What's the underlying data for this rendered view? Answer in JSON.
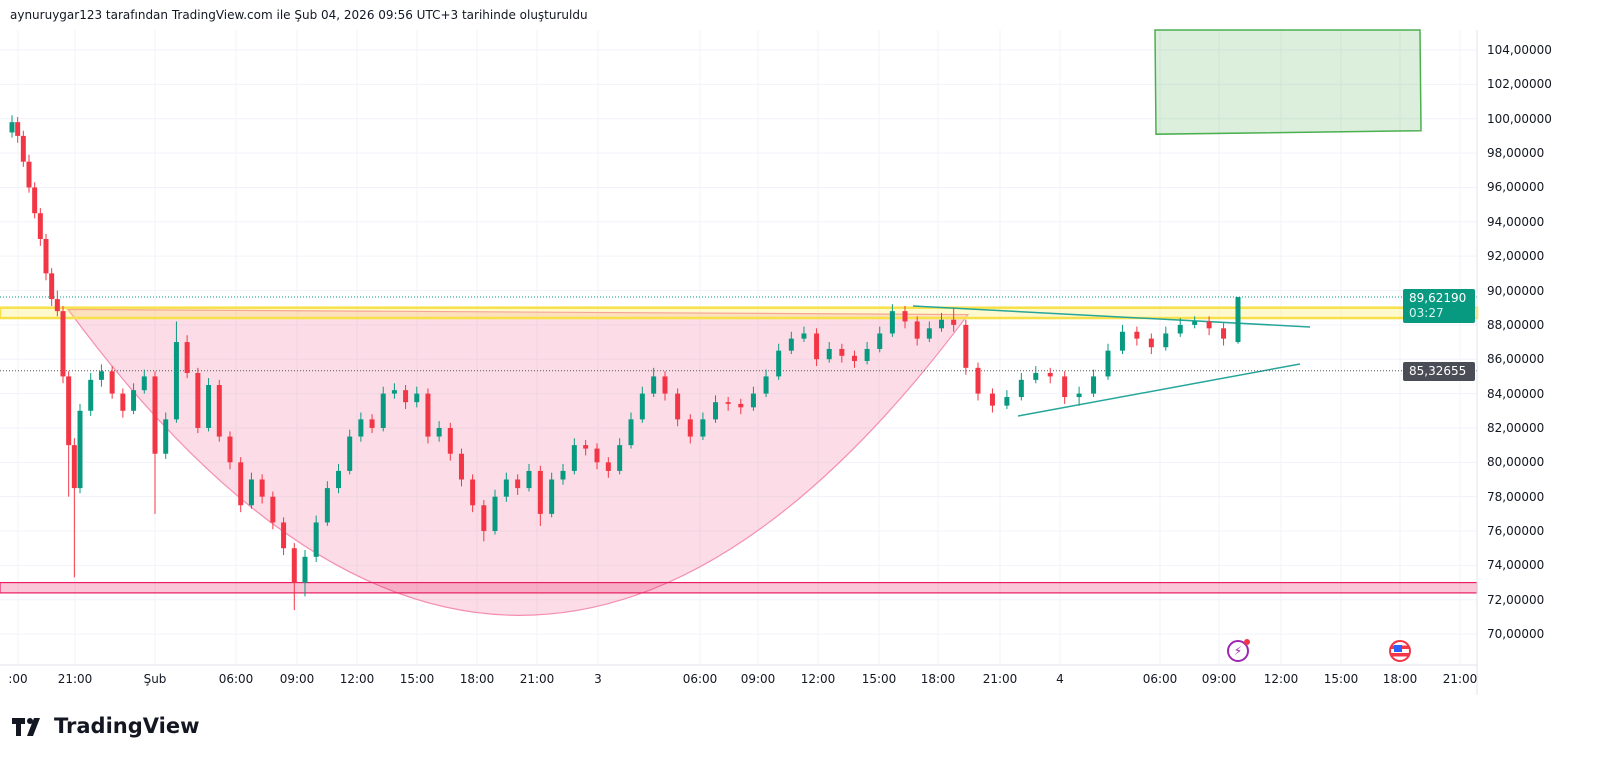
{
  "caption": "aynuruygar123 tarafından TradingView.com ile Şub 04, 2026 09:56 UTC+3 tarihinde oluşturuldu",
  "brand": "TradingView",
  "colors": {
    "up": "#089981",
    "down": "#f23645",
    "resistance": "#f7e04a",
    "support": "#e91e63",
    "cup": "#f48fb1",
    "triangle": "#26a69a",
    "target": "#4caf50"
  },
  "chart_data": {
    "type": "candlestick",
    "title": "",
    "y_axis_labels": [
      "104,00000",
      "102,00000",
      "100,00000",
      "98,00000",
      "96,00000",
      "94,00000",
      "92,00000",
      "90,00000",
      "88,00000",
      "86,00000",
      "84,00000",
      "82,00000",
      "80,00000",
      "78,00000",
      "76,00000",
      "74,00000",
      "72,00000",
      "70,00000"
    ],
    "y_values": [
      104,
      102,
      100,
      98,
      96,
      94,
      92,
      90,
      88,
      86,
      84,
      82,
      80,
      78,
      76,
      74,
      72,
      70
    ],
    "ylim": [
      69,
      105.2
    ],
    "x_axis_labels": [
      ":00",
      "21:00",
      "Şub",
      "06:00",
      "09:00",
      "12:00",
      "15:00",
      "18:00",
      "21:00",
      "3",
      "06:00",
      "09:00",
      "12:00",
      "15:00",
      "18:00",
      "21:00",
      "4",
      "06:00",
      "09:00",
      "12:00",
      "15:00",
      "18:00",
      "21:00"
    ],
    "last_price": {
      "value": "89,62190",
      "countdown": "03:27",
      "raw": 89.6219
    },
    "prev_close": {
      "value": "85,32655",
      "raw": 85.32655
    },
    "resistance_zone": [
      88.4,
      89.0
    ],
    "support_zone": [
      72.4,
      73.0
    ],
    "target_zone": [
      99.1,
      105.2
    ],
    "cup_bottom": 71.4,
    "candles": [
      [
        99.2,
        100.2,
        98.9,
        99.8
      ],
      [
        99.8,
        100.1,
        98.6,
        99.0
      ],
      [
        99.0,
        99.3,
        97.2,
        97.5
      ],
      [
        97.5,
        97.9,
        95.7,
        96.0
      ],
      [
        96.0,
        96.3,
        94.2,
        94.5
      ],
      [
        94.5,
        94.8,
        92.6,
        93.0
      ],
      [
        93.0,
        93.3,
        90.6,
        91.0
      ],
      [
        91.0,
        91.3,
        89.1,
        89.5
      ],
      [
        89.5,
        90.0,
        88.5,
        88.8
      ],
      [
        88.8,
        89.1,
        84.6,
        85.0
      ],
      [
        85.0,
        85.3,
        78.0,
        81.0
      ],
      [
        81.0,
        81.4,
        73.3,
        78.5
      ],
      [
        78.5,
        83.4,
        78.2,
        83.0
      ],
      [
        83.0,
        85.2,
        82.7,
        84.8
      ],
      [
        84.8,
        85.7,
        84.4,
        85.3
      ],
      [
        85.3,
        85.6,
        83.7,
        84.0
      ],
      [
        84.0,
        84.3,
        82.6,
        83.0
      ],
      [
        83.0,
        84.6,
        82.8,
        84.2
      ],
      [
        84.2,
        85.4,
        84.0,
        85.0
      ],
      [
        85.0,
        85.3,
        77.0,
        80.5
      ],
      [
        80.5,
        82.9,
        80.2,
        82.5
      ],
      [
        82.5,
        88.2,
        82.3,
        87.0
      ],
      [
        87.0,
        87.4,
        84.9,
        85.2
      ],
      [
        85.2,
        85.5,
        81.7,
        82.0
      ],
      [
        82.0,
        84.9,
        81.8,
        84.5
      ],
      [
        84.5,
        84.8,
        81.2,
        81.5
      ],
      [
        81.5,
        81.8,
        79.6,
        80.0
      ],
      [
        80.0,
        80.3,
        77.1,
        77.5
      ],
      [
        77.5,
        79.4,
        77.3,
        79.0
      ],
      [
        79.0,
        79.3,
        77.6,
        78.0
      ],
      [
        78.0,
        78.3,
        76.1,
        76.5
      ],
      [
        76.5,
        76.8,
        74.6,
        75.0
      ],
      [
        75.0,
        75.3,
        71.4,
        73.0
      ],
      [
        73.0,
        74.9,
        72.2,
        74.5
      ],
      [
        74.5,
        76.9,
        74.2,
        76.5
      ],
      [
        76.5,
        78.9,
        76.3,
        78.5
      ],
      [
        78.5,
        79.9,
        78.2,
        79.5
      ],
      [
        79.5,
        81.9,
        79.3,
        81.5
      ],
      [
        81.5,
        82.9,
        81.2,
        82.5
      ],
      [
        82.5,
        82.8,
        81.7,
        82.0
      ],
      [
        82.0,
        84.4,
        81.8,
        84.0
      ],
      [
        84.0,
        84.6,
        83.7,
        84.2
      ],
      [
        84.2,
        84.5,
        83.1,
        83.5
      ],
      [
        83.5,
        84.4,
        83.2,
        84.0
      ],
      [
        84.0,
        84.3,
        81.1,
        81.5
      ],
      [
        81.5,
        82.4,
        81.2,
        82.0
      ],
      [
        82.0,
        82.3,
        80.1,
        80.5
      ],
      [
        80.5,
        80.8,
        78.6,
        79.0
      ],
      [
        79.0,
        79.3,
        77.1,
        77.5
      ],
      [
        77.5,
        77.8,
        75.4,
        76.0
      ],
      [
        76.0,
        78.4,
        75.8,
        78.0
      ],
      [
        78.0,
        79.4,
        77.7,
        79.0
      ],
      [
        79.0,
        79.3,
        78.1,
        78.5
      ],
      [
        78.5,
        79.9,
        78.3,
        79.5
      ],
      [
        79.5,
        79.8,
        76.3,
        77.0
      ],
      [
        77.0,
        79.4,
        76.8,
        79.0
      ],
      [
        79.0,
        79.9,
        78.7,
        79.5
      ],
      [
        79.5,
        81.4,
        79.3,
        81.0
      ],
      [
        81.0,
        81.3,
        80.4,
        80.8
      ],
      [
        80.8,
        81.1,
        79.6,
        80.0
      ],
      [
        80.0,
        80.3,
        79.1,
        79.5
      ],
      [
        79.5,
        81.4,
        79.3,
        81.0
      ],
      [
        81.0,
        82.9,
        80.8,
        82.5
      ],
      [
        82.5,
        84.4,
        82.3,
        84.0
      ],
      [
        84.0,
        85.5,
        83.8,
        85.0
      ],
      [
        85.0,
        85.3,
        83.6,
        84.0
      ],
      [
        84.0,
        84.3,
        82.1,
        82.5
      ],
      [
        82.5,
        82.8,
        81.1,
        81.5
      ],
      [
        81.5,
        82.9,
        81.3,
        82.5
      ],
      [
        82.5,
        83.9,
        82.3,
        83.5
      ],
      [
        83.5,
        83.8,
        83.0,
        83.4
      ],
      [
        83.4,
        83.7,
        82.8,
        83.2
      ],
      [
        83.2,
        84.4,
        83.0,
        84.0
      ],
      [
        84.0,
        85.4,
        83.8,
        85.0
      ],
      [
        85.0,
        86.9,
        84.8,
        86.5
      ],
      [
        86.5,
        87.6,
        86.3,
        87.2
      ],
      [
        87.2,
        87.9,
        87.0,
        87.5
      ],
      [
        87.5,
        87.8,
        85.6,
        86.0
      ],
      [
        86.0,
        87.0,
        85.8,
        86.6
      ],
      [
        86.6,
        86.9,
        85.8,
        86.2
      ],
      [
        86.2,
        86.5,
        85.5,
        85.9
      ],
      [
        85.9,
        87.0,
        85.7,
        86.6
      ],
      [
        86.6,
        87.9,
        86.4,
        87.5
      ],
      [
        87.5,
        89.2,
        87.3,
        88.8
      ],
      [
        88.8,
        89.1,
        87.8,
        88.2
      ],
      [
        88.2,
        88.5,
        86.8,
        87.2
      ],
      [
        87.2,
        88.2,
        87.0,
        87.8
      ],
      [
        87.8,
        88.7,
        87.6,
        88.3
      ],
      [
        88.3,
        89.0,
        87.6,
        88.0
      ],
      [
        88.0,
        88.3,
        85.1,
        85.5
      ],
      [
        85.5,
        85.8,
        83.6,
        84.0
      ],
      [
        84.0,
        84.3,
        82.9,
        83.3
      ],
      [
        83.3,
        84.2,
        83.1,
        83.8
      ],
      [
        83.8,
        85.2,
        83.6,
        84.8
      ],
      [
        84.8,
        85.6,
        84.6,
        85.2
      ],
      [
        85.2,
        85.5,
        84.6,
        85.0
      ],
      [
        85.0,
        85.3,
        83.4,
        83.8
      ],
      [
        83.8,
        84.4,
        83.3,
        84.0
      ],
      [
        84.0,
        85.4,
        83.8,
        85.0
      ],
      [
        85.0,
        86.9,
        84.8,
        86.5
      ],
      [
        86.5,
        88.0,
        86.3,
        87.6
      ],
      [
        87.6,
        87.9,
        86.8,
        87.2
      ],
      [
        87.2,
        87.5,
        86.3,
        86.7
      ],
      [
        86.7,
        87.9,
        86.5,
        87.5
      ],
      [
        87.5,
        88.4,
        87.3,
        88.0
      ],
      [
        88.0,
        88.5,
        87.8,
        88.2
      ],
      [
        88.2,
        88.5,
        87.4,
        87.8
      ],
      [
        87.8,
        88.1,
        86.8,
        87.2
      ],
      [
        87.0,
        89.62,
        86.9,
        89.62
      ]
    ]
  }
}
